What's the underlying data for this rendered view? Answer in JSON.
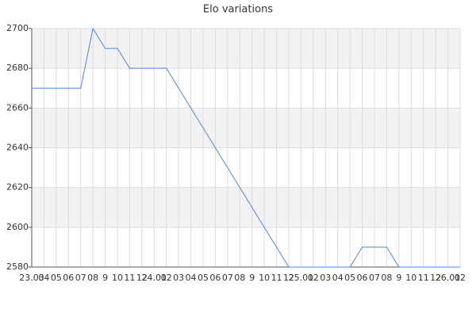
{
  "chart_data": {
    "type": "line",
    "title": "Elo variations",
    "categories": [
      "23.03",
      "04",
      "05",
      "06",
      "07",
      "08",
      "9",
      "10",
      "11",
      "12",
      "24.01",
      "02",
      "03",
      "04",
      "05",
      "06",
      "07",
      "08",
      "9",
      "10",
      "11",
      "12",
      "25.01",
      "02",
      "03",
      "04",
      "05",
      "06",
      "07",
      "08",
      "9",
      "10",
      "11",
      "12",
      "26.01",
      "02"
    ],
    "values": [
      2670,
      2670,
      2670,
      2670,
      2670,
      2700,
      2690,
      2690,
      2680,
      2680,
      2680,
      2680,
      2670,
      2660,
      2650,
      2640,
      2630,
      2620,
      2610,
      2600,
      2590,
      2580,
      2580,
      2580,
      2580,
      2580,
      2580,
      2590,
      2590,
      2590,
      2580,
      2580,
      2580,
      2580,
      2580,
      2580
    ],
    "color": "#4a86e8",
    "ylim": [
      2580,
      2700
    ],
    "yticks": [
      2580,
      2600,
      2620,
      2640,
      2660,
      2680,
      2700
    ],
    "grid": true,
    "bands": true
  }
}
